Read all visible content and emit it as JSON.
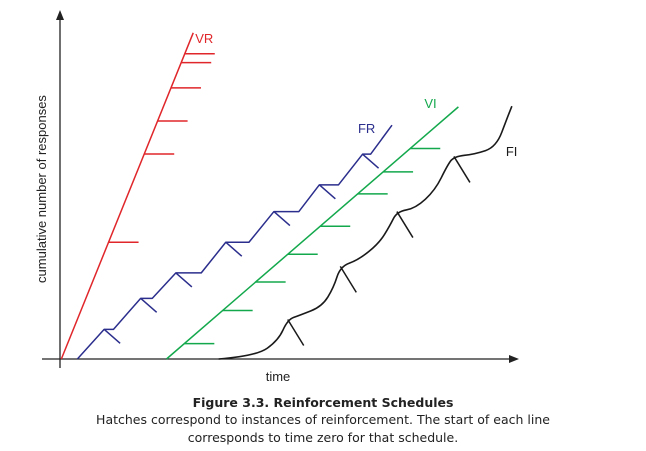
{
  "chart_data": {
    "type": "line",
    "xlabel": "time",
    "ylabel": "cumulative number of responses",
    "grid": false,
    "ticks": false,
    "series": [
      {
        "name": "VR",
        "color": "#e0262a",
        "shape": "straight",
        "points": [
          [
            0.3,
            0
          ],
          [
            29.9,
            100
          ]
        ],
        "reinforcement_x": [
          10.9,
          18.9,
          21.9,
          24.9,
          27.2,
          28.0
        ]
      },
      {
        "name": "FR",
        "color": "#2b2e8c",
        "shape": "staircase",
        "points": [
          [
            3.9,
            0
          ],
          [
            9.9,
            9.1
          ],
          [
            12.0,
            9.1
          ],
          [
            18.1,
            18.6
          ],
          [
            20.7,
            18.6
          ],
          [
            26.0,
            26.4
          ],
          [
            31.7,
            26.4
          ],
          [
            37.2,
            35.8
          ],
          [
            42.4,
            35.8
          ],
          [
            48.0,
            45.2
          ],
          [
            53.6,
            45.2
          ],
          [
            58.2,
            53.4
          ],
          [
            62.5,
            53.4
          ],
          [
            67.9,
            62.8
          ],
          [
            69.7,
            62.8
          ],
          [
            74.5,
            71.7
          ]
        ],
        "reinforcement_x": [
          9.9,
          18.1,
          26.0,
          37.2,
          48.0,
          58.2,
          67.9
        ]
      },
      {
        "name": "VI",
        "color": "#13a84c",
        "shape": "straight",
        "points": [
          [
            23.9,
            0
          ],
          [
            89.4,
            77.3
          ]
        ],
        "reinforcement_x": [
          27.9,
          36.5,
          43.9,
          51.1,
          58.4,
          66.8,
          72.5,
          78.6
        ]
      },
      {
        "name": "FI",
        "color": "#1a1a1a",
        "shape": "scallops",
        "points": [
          [
            35.6,
            0
          ],
          [
            44.0,
            0.9
          ],
          [
            49.0,
            5.7
          ],
          [
            51.1,
            12.1
          ],
          [
            53.8,
            13.4
          ],
          [
            58.8,
            16.1
          ],
          [
            61.4,
            21.9
          ],
          [
            62.9,
            28.4
          ],
          [
            67.0,
            30.4
          ],
          [
            71.6,
            35.5
          ],
          [
            74.0,
            40.8
          ],
          [
            75.6,
            45.2
          ],
          [
            79.8,
            46.2
          ],
          [
            84.2,
            51.8
          ],
          [
            86.9,
            59.3
          ],
          [
            88.4,
            62.1
          ],
          [
            93.1,
            62.8
          ],
          [
            97.9,
            65.0
          ],
          [
            100.4,
            74.1
          ],
          [
            101.4,
            77.5
          ]
        ],
        "reinforcement_x": [
          51.1,
          62.9,
          75.6,
          88.4
        ]
      }
    ],
    "xlim": [
      0,
      103
    ],
    "ylim": [
      0,
      107
    ]
  },
  "caption": {
    "title": "Figure 3.3.  Reinforcement Schedules",
    "line1": "Hatches correspond to instances of reinforcement. The start of each line",
    "line2": "corresponds to time zero for that schedule."
  }
}
